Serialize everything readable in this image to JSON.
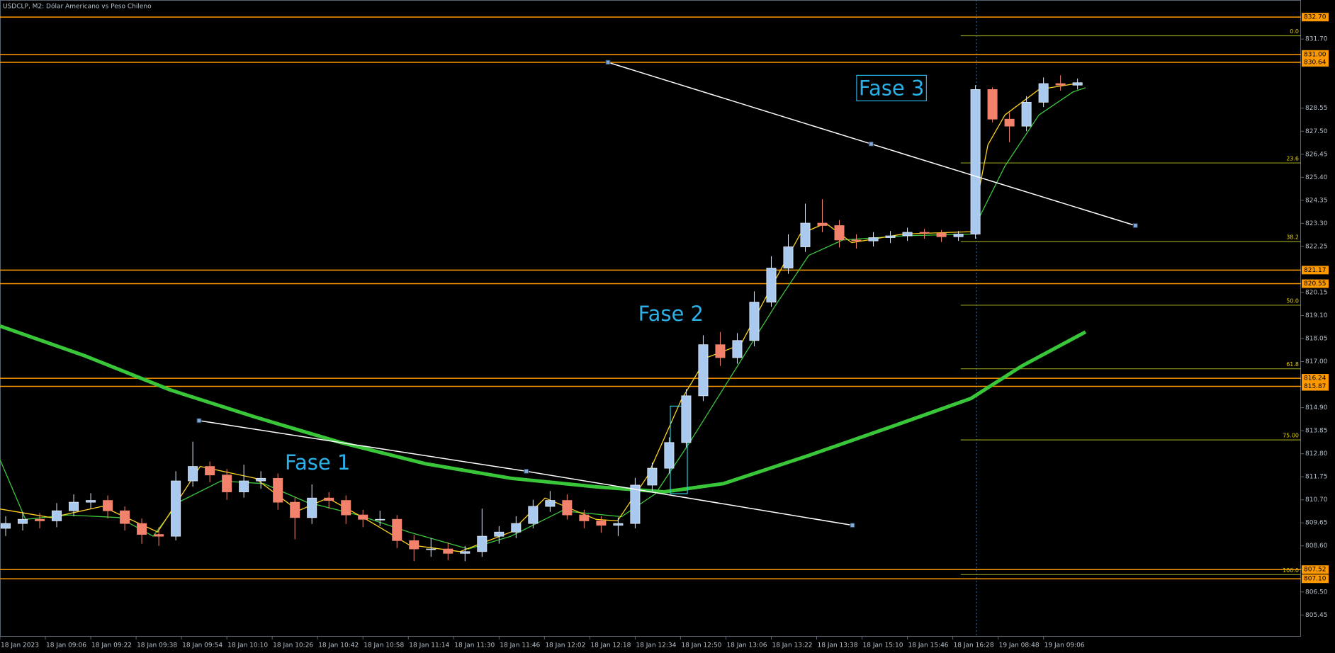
{
  "chart_data": {
    "type": "candlestick",
    "title": "USDCLP, M2:  Dólar Americano vs Peso Chileno",
    "up_color": "#a9c9ef",
    "down_color": "#f2826c",
    "x": [
      1,
      4,
      7,
      10,
      13,
      16,
      19,
      22,
      25,
      28,
      31,
      34,
      37,
      40,
      43,
      46,
      49,
      52,
      55,
      58,
      61,
      64,
      67,
      70,
      73,
      76,
      79,
      82,
      85,
      88,
      91,
      94,
      97,
      100,
      103,
      106,
      109,
      112,
      115,
      118,
      121,
      124,
      127,
      130,
      133,
      136,
      139,
      142,
      145,
      148,
      151,
      154,
      157,
      160,
      163,
      166,
      169,
      172,
      175,
      178,
      181,
      184,
      187,
      190
    ],
    "open": [
      809.4,
      809.62,
      809.81,
      809.74,
      810.2,
      810.59,
      810.67,
      810.2,
      809.62,
      809.12,
      809.04,
      811.56,
      812.22,
      811.83,
      811.06,
      811.56,
      811.68,
      810.59,
      809.89,
      810.78,
      810.67,
      810.01,
      809.81,
      809.81,
      808.84,
      808.46,
      808.46,
      808.26,
      808.34,
      809.04,
      809.23,
      809.62,
      810.4,
      810.67,
      810.01,
      809.74,
      809.54,
      809.62,
      811.37,
      812.14,
      813.31,
      815.44,
      817.77,
      817.18,
      817.96,
      819.71,
      821.26,
      822.23,
      823.31,
      823.2,
      822.54,
      822.5,
      822.65,
      822.73,
      822.89,
      822.85,
      822.69,
      822.81,
      829.4,
      828.05,
      827.73,
      828.82,
      829.67,
      829.6
    ],
    "high": [
      809.95,
      810.15,
      810.1,
      810.55,
      810.95,
      811.0,
      810.9,
      810.4,
      809.85,
      809.45,
      812.0,
      813.35,
      812.45,
      812.1,
      812.3,
      812.0,
      811.9,
      810.8,
      811.4,
      811.05,
      810.9,
      810.25,
      810.2,
      810.0,
      809.1,
      808.95,
      808.75,
      808.6,
      810.3,
      809.5,
      809.95,
      810.7,
      811.1,
      810.95,
      810.25,
      809.95,
      809.9,
      811.7,
      812.4,
      813.55,
      815.75,
      818.2,
      818.35,
      818.3,
      820.2,
      821.8,
      822.8,
      824.2,
      824.4,
      823.45,
      822.8,
      822.9,
      822.95,
      823.1,
      823.05,
      823.0,
      822.95,
      829.6,
      829.5,
      828.35,
      829.1,
      829.95,
      830.05,
      829.9
    ],
    "low": [
      809.05,
      809.3,
      809.4,
      809.45,
      809.95,
      810.3,
      809.85,
      809.3,
      808.7,
      808.6,
      808.85,
      811.3,
      811.5,
      810.7,
      810.8,
      811.2,
      810.25,
      808.9,
      809.6,
      810.3,
      809.6,
      809.45,
      809.5,
      808.5,
      807.9,
      808.1,
      807.95,
      807.9,
      808.1,
      808.7,
      808.95,
      809.4,
      810.15,
      809.8,
      809.4,
      809.2,
      809.05,
      809.4,
      811.1,
      811.9,
      813.1,
      815.2,
      816.8,
      816.9,
      817.7,
      819.5,
      821.0,
      822.0,
      822.9,
      822.2,
      822.15,
      822.25,
      822.4,
      822.5,
      822.6,
      822.45,
      822.5,
      822.6,
      827.9,
      827.0,
      827.5,
      828.6,
      829.35,
      829.4
    ],
    "close": [
      809.62,
      809.81,
      809.74,
      810.2,
      810.59,
      810.67,
      810.2,
      809.62,
      809.12,
      809.04,
      811.56,
      812.22,
      811.83,
      811.06,
      811.56,
      811.68,
      810.59,
      809.89,
      810.78,
      810.67,
      810.01,
      809.81,
      809.81,
      808.84,
      808.46,
      808.46,
      808.26,
      808.34,
      809.04,
      809.23,
      809.62,
      810.4,
      810.67,
      810.01,
      809.74,
      809.54,
      809.62,
      811.37,
      812.14,
      813.31,
      815.44,
      817.77,
      817.18,
      817.96,
      819.71,
      821.26,
      822.23,
      823.31,
      823.2,
      822.54,
      822.5,
      822.65,
      822.73,
      822.89,
      822.85,
      822.69,
      822.81,
      829.4,
      828.05,
      827.73,
      828.82,
      829.67,
      829.6,
      829.71
    ],
    "xlim": [
      0,
      229.4
    ],
    "ylim": [
      804.46,
      833.48
    ],
    "xticks": [
      {
        "value": 0,
        "label": "18 Jan 2023"
      },
      {
        "value": 8,
        "label": "18 Jan 09:06"
      },
      {
        "value": 16,
        "label": "18 Jan 09:22"
      },
      {
        "value": 24,
        "label": "18 Jan 09:38"
      },
      {
        "value": 32,
        "label": "18 Jan 09:54"
      },
      {
        "value": 40,
        "label": "18 Jan 10:10"
      },
      {
        "value": 48,
        "label": "18 Jan 10:26"
      },
      {
        "value": 56,
        "label": "18 Jan 10:42"
      },
      {
        "value": 64,
        "label": "18 Jan 10:58"
      },
      {
        "value": 72,
        "label": "18 Jan 11:14"
      },
      {
        "value": 80,
        "label": "18 Jan 11:30"
      },
      {
        "value": 88,
        "label": "18 Jan 11:46"
      },
      {
        "value": 96,
        "label": "18 Jan 12:02"
      },
      {
        "value": 104,
        "label": "18 Jan 12:18"
      },
      {
        "value": 112,
        "label": "18 Jan 12:34"
      },
      {
        "value": 120,
        "label": "18 Jan 12:50"
      },
      {
        "value": 128,
        "label": "18 Jan 13:06"
      },
      {
        "value": 136,
        "label": "18 Jan 13:22"
      },
      {
        "value": 144,
        "label": "18 Jan 13:38"
      },
      {
        "value": 152,
        "label": "18 Jan 15:10"
      },
      {
        "value": 160,
        "label": "18 Jan 15:46"
      },
      {
        "value": 168,
        "label": "18 Jan 16:28"
      },
      {
        "value": 176,
        "label": "19 Jan 08:48"
      },
      {
        "value": 184,
        "label": "19 Jan 09:06"
      }
    ],
    "yticks": [
      {
        "value": 831.7,
        "label": "831.70"
      },
      828.55,
      {
        "value": 827.5,
        "label": "827.50"
      },
      826.45,
      {
        "value": 825.4,
        "label": "825.40"
      },
      824.35,
      {
        "value": 823.3,
        "label": "823.30"
      },
      822.25,
      820.15,
      {
        "value": 819.1,
        "label": "819.10"
      },
      818.05,
      {
        "value": 817,
        "label": "817.00"
      },
      {
        "value": 814.9,
        "label": "814.90"
      },
      813.85,
      {
        "value": 812.8,
        "label": "812.80"
      },
      811.75,
      {
        "value": 810.7,
        "label": "810.70"
      },
      809.65,
      {
        "value": 808.6,
        "label": "808.60"
      },
      807.55,
      {
        "value": 806.5,
        "label": "806.50"
      },
      805.45
    ],
    "grid": false,
    "price_levels": {
      "color": "#ff9900",
      "values": [
        {
          "value": 832.7,
          "label": "832.70"
        },
        {
          "value": 831,
          "label": "831.00"
        },
        830.64,
        821.17,
        820.55,
        816.24,
        815.87,
        807.52,
        {
          "value": 807.1,
          "label": "807.10"
        }
      ]
    },
    "moving_averages": [
      {
        "color": "#39c639",
        "width": 5,
        "x": [
          0,
          15.0,
          30.0,
          45.0,
          60.1,
          75.1,
          90.1,
          105.1,
          117.1,
          127.6,
          142.6,
          157.7,
          171.2,
          180.2,
          191.4
        ],
        "values": [
          818.62,
          817.26,
          815.71,
          814.47,
          813.31,
          812.34,
          811.68,
          811.29,
          811.06,
          811.44,
          812.72,
          814.08,
          815.32,
          816.8,
          818.35
        ]
      },
      {
        "color": "#3ec83e",
        "width": 1.3,
        "x": [
          0,
          4.5,
          12.0,
          21.0,
          27.0,
          31.5,
          39.0,
          46.5,
          54.1,
          63.1,
          72.1,
          82.6,
          90.1,
          99.1,
          109.6,
          115.6,
          121.6,
          129.1,
          136.6,
          142.6,
          148.6,
          159.2,
          171.2,
          177.2,
          183.2,
          189.2,
          191.4
        ],
        "values": [
          812.53,
          809.81,
          810.01,
          809.89,
          809.04,
          810.59,
          811.56,
          811.44,
          810.59,
          810.01,
          809.23,
          808.46,
          809.04,
          810.2,
          809.93,
          810.98,
          813.31,
          816.41,
          819.51,
          821.84,
          822.54,
          822.73,
          822.81,
          825.91,
          828.24,
          829.29,
          829.48
        ]
      },
      {
        "color": "#ffd21f",
        "width": 1.3,
        "x": [
          0,
          9.0,
          18.0,
          27.8,
          35.3,
          45.0,
          52.6,
          57.8,
          64.6,
          72.1,
          81.1,
          90.1,
          96.1,
          105.1,
          108.9,
          114.1,
          120.1,
          124.6,
          130.6,
          136.6,
          141.1,
          145.6,
          150.2,
          159.2,
          171.2,
          174.2,
          177.2,
          183.2,
          190.7
        ],
        "values": [
          810.28,
          809.89,
          810.4,
          809.23,
          812.22,
          811.68,
          810.2,
          810.78,
          809.81,
          808.65,
          808.34,
          809.23,
          810.78,
          809.81,
          809.74,
          811.75,
          815.24,
          817.18,
          817.77,
          820.68,
          822.81,
          823.31,
          822.42,
          822.81,
          822.92,
          826.88,
          828.24,
          829.4,
          829.71
        ]
      }
    ],
    "fibonacci": {
      "color": "#8f9a1e",
      "label_color": "#e6d200",
      "x_start": 169.4,
      "high": 831.85,
      "low": 807.29,
      "levels": [
        {
          "value": 0,
          "label": "0.0"
        },
        23.6,
        38.2,
        {
          "value": 50,
          "label": "50.0"
        },
        61.8,
        {
          "value": 75,
          "label": "75.00"
        },
        {
          "value": 100,
          "label": "100.0"
        }
      ]
    },
    "trendlines": [
      {
        "color": "#ffffff",
        "x": [
          35.1,
          92.8,
          150.3
        ],
        "y": [
          814.31,
          812.0,
          809.54
        ]
      },
      {
        "color": "#ffffff",
        "x": [
          107.2,
          153.6,
          200.2
        ],
        "y": [
          830.64,
          826.92,
          823.2
        ]
      }
    ],
    "vline": {
      "x": 172.2,
      "color": "#3a6ea5"
    },
    "box": {
      "x": [
        118.2,
        121.2
      ],
      "y": [
        810.98,
        814.97
      ],
      "color": "#30c8d8"
    },
    "annotations": [
      {
        "text": "Fase 1",
        "x": 56.0,
        "y": 812.34,
        "color": "#2bb0e8",
        "boxed": false
      },
      {
        "text": "Fase 2",
        "x": 118.3,
        "y": 819.12,
        "color": "#2bb0e8",
        "boxed": false
      },
      {
        "text": "Fase 3",
        "x": 157.2,
        "y": 829.4,
        "color": "#2bb0e8",
        "boxed": true
      }
    ]
  }
}
